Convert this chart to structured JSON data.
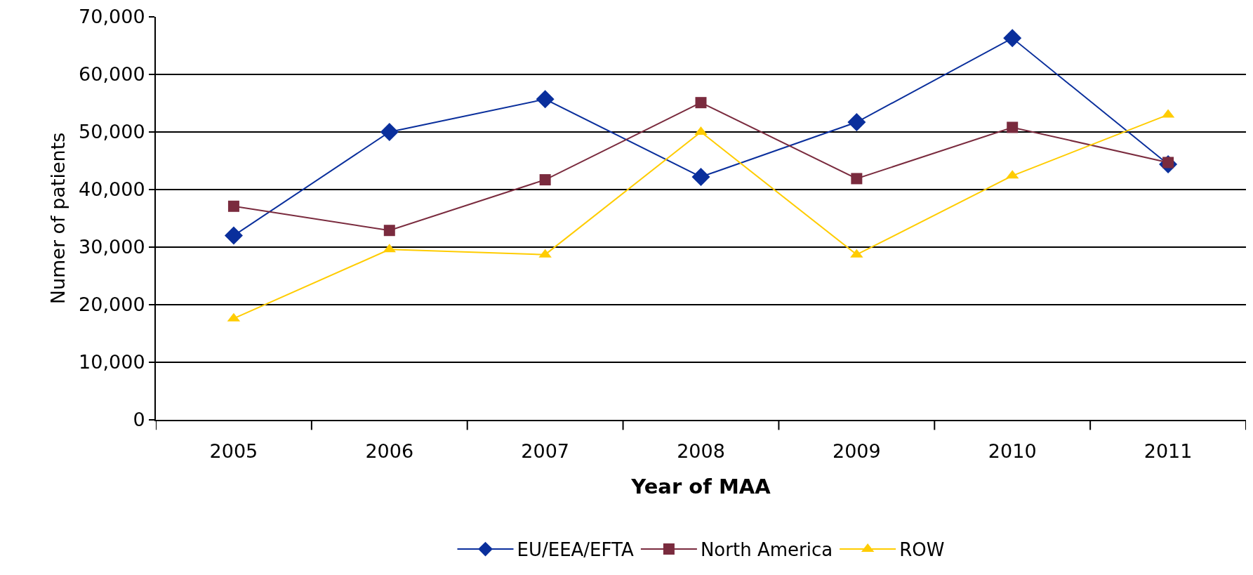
{
  "chart_data": {
    "type": "line",
    "xlabel": "Year of MAA",
    "ylabel": "Numer of patients",
    "categories": [
      "2005",
      "2006",
      "2007",
      "2008",
      "2009",
      "2010",
      "2011"
    ],
    "series": [
      {
        "name": "EU/EEA/EFTA",
        "color": "#0a2f9c",
        "marker": "diamond",
        "values": [
          32000,
          50000,
          55700,
          42200,
          51700,
          66300,
          44400
        ]
      },
      {
        "name": "North America",
        "color": "#7a2b3e",
        "marker": "square",
        "values": [
          37100,
          32900,
          41700,
          55100,
          41900,
          50800,
          44700
        ]
      },
      {
        "name": "ROW",
        "color": "#ffcc00",
        "marker": "triangle",
        "values": [
          17600,
          29600,
          28700,
          50000,
          28700,
          42400,
          53000
        ]
      }
    ],
    "ylim": [
      0,
      70000
    ],
    "yticks": [
      {
        "value": 0,
        "label": "0"
      },
      {
        "value": 10000,
        "label": "10,000"
      },
      {
        "value": 20000,
        "label": "20,000"
      },
      {
        "value": 30000,
        "label": "30,000"
      },
      {
        "value": 40000,
        "label": "40,000"
      },
      {
        "value": 50000,
        "label": "50,000"
      },
      {
        "value": 60000,
        "label": "60,000"
      },
      {
        "value": 70000,
        "label": "70,000"
      }
    ],
    "grid": "y",
    "legend": "bottom",
    "line_style": "solid"
  }
}
